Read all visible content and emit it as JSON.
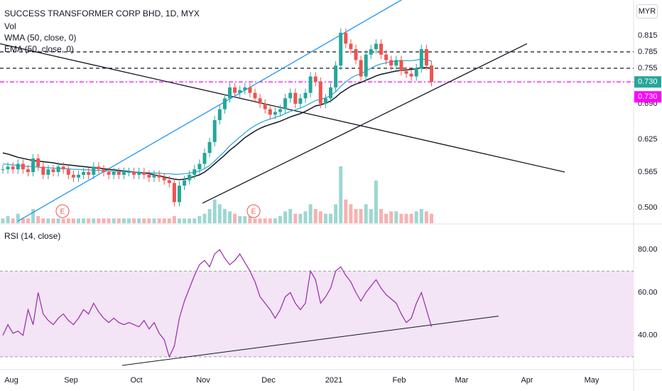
{
  "header": {
    "title": "SUCCESS TRANSFORMER CORP BHD, 1D, MYX",
    "studies": [
      "Vol",
      "WMA (50, close, 0)",
      "EMA (50, close, 0)"
    ],
    "currency": "MYR"
  },
  "rsi_panel": {
    "label": "RSI (14, close)"
  },
  "colors": {
    "up": "#26a69a",
    "down": "#ef5350",
    "wma": "#131722",
    "ema": "#26a4d8",
    "channel": "#2196f3",
    "rsi": "#9c27b0",
    "rsi_band": "#f3e5f5",
    "price_badge": "#26a69a",
    "alert_badge": "#ff00ff"
  },
  "chart_data": [
    {
      "type": "candlestick",
      "title": "SUCCESS TRANSFORMER CORP BHD, 1D, MYX",
      "x_ticks": [
        "Aug",
        "Sep",
        "Oct",
        "Nov",
        "Dec",
        "2021",
        "Feb",
        "Mar",
        "Apr",
        "May"
      ],
      "y_ticks": [
        0.5,
        0.565,
        0.625,
        0.69,
        0.755,
        0.815
      ],
      "ylim": [
        0.47,
        0.88
      ],
      "horizontal_levels": [
        0.785,
        0.755,
        0.73
      ],
      "price_labels": [
        "0.785",
        "0.755",
        "0.730",
        "0.730"
      ],
      "series": [
        {
          "name": "Price",
          "close": [
            0.57,
            0.575,
            0.57,
            0.58,
            0.57,
            0.565,
            0.59,
            0.575,
            0.56,
            0.57,
            0.565,
            0.575,
            0.57,
            0.56,
            0.555,
            0.56,
            0.565,
            0.56,
            0.575,
            0.57,
            0.565,
            0.56,
            0.565,
            0.56,
            0.565,
            0.565,
            0.56,
            0.565,
            0.56,
            0.555,
            0.56,
            0.555,
            0.55,
            0.545,
            0.51,
            0.54,
            0.55,
            0.56,
            0.57,
            0.58,
            0.6,
            0.62,
            0.66,
            0.68,
            0.7,
            0.72,
            0.71,
            0.715,
            0.72,
            0.71,
            0.7,
            0.69,
            0.68,
            0.67,
            0.675,
            0.68,
            0.7,
            0.71,
            0.69,
            0.7,
            0.71,
            0.74,
            0.73,
            0.69,
            0.7,
            0.72,
            0.76,
            0.82,
            0.8,
            0.79,
            0.77,
            0.74,
            0.78,
            0.79,
            0.8,
            0.78,
            0.77,
            0.76,
            0.77,
            0.75,
            0.745,
            0.74,
            0.755,
            0.79,
            0.76,
            0.73
          ]
        },
        {
          "name": "WMA (50, close, 0)",
          "values": [
            0.6,
            0.598,
            0.595,
            0.592,
            0.59,
            0.588,
            0.586,
            0.585,
            0.584,
            0.583,
            0.582,
            0.58,
            0.579,
            0.578,
            0.577,
            0.576,
            0.575,
            0.574,
            0.573,
            0.572,
            0.571,
            0.57,
            0.569,
            0.568,
            0.567,
            0.566,
            0.565,
            0.564,
            0.563,
            0.562,
            0.56,
            0.558,
            0.556,
            0.554,
            0.552,
            0.551,
            0.552,
            0.554,
            0.557,
            0.56,
            0.565,
            0.572,
            0.58,
            0.588,
            0.596,
            0.605,
            0.612,
            0.62,
            0.628,
            0.634,
            0.64,
            0.645,
            0.649,
            0.652,
            0.655,
            0.658,
            0.662,
            0.666,
            0.669,
            0.672,
            0.676,
            0.681,
            0.686,
            0.688,
            0.691,
            0.695,
            0.702,
            0.71,
            0.716,
            0.722,
            0.726,
            0.729,
            0.733,
            0.737,
            0.741,
            0.744,
            0.746,
            0.748,
            0.75,
            0.751,
            0.752,
            0.753,
            0.754,
            0.756,
            0.756,
            0.755
          ]
        },
        {
          "name": "EMA (50, close, 0)",
          "values": [
            0.58,
            0.579,
            0.578,
            0.577,
            0.576,
            0.575,
            0.575,
            0.574,
            0.573,
            0.573,
            0.572,
            0.572,
            0.571,
            0.571,
            0.57,
            0.57,
            0.569,
            0.569,
            0.568,
            0.568,
            0.567,
            0.567,
            0.566,
            0.566,
            0.566,
            0.565,
            0.565,
            0.565,
            0.564,
            0.564,
            0.563,
            0.563,
            0.562,
            0.562,
            0.561,
            0.561,
            0.562,
            0.563,
            0.565,
            0.567,
            0.571,
            0.577,
            0.585,
            0.594,
            0.603,
            0.613,
            0.621,
            0.629,
            0.637,
            0.644,
            0.65,
            0.655,
            0.659,
            0.662,
            0.665,
            0.668,
            0.672,
            0.676,
            0.679,
            0.682,
            0.686,
            0.691,
            0.696,
            0.698,
            0.701,
            0.705,
            0.712,
            0.722,
            0.73,
            0.737,
            0.742,
            0.745,
            0.75,
            0.755,
            0.76,
            0.763,
            0.765,
            0.767,
            0.768,
            0.769,
            0.769,
            0.769,
            0.77,
            0.772,
            0.771,
            0.768
          ]
        },
        {
          "name": "Vol",
          "values": [
            1,
            1.5,
            1,
            2,
            1,
            1,
            3,
            1.5,
            1,
            1,
            1,
            1,
            1,
            1,
            1,
            1,
            1,
            1,
            1,
            1,
            1,
            1,
            1,
            1,
            1,
            1,
            1,
            1,
            1,
            1,
            1,
            1,
            1,
            1,
            1.5,
            1,
            1,
            1,
            1,
            1.5,
            2,
            3,
            5,
            4,
            3,
            2.5,
            2,
            1.5,
            1.5,
            1.5,
            1,
            1,
            1,
            1,
            1,
            1.5,
            2.5,
            3,
            2,
            2,
            2.5,
            4,
            3,
            2.5,
            2,
            2,
            4,
            12,
            5,
            4,
            3,
            3,
            4,
            3,
            9,
            3,
            2,
            2.5,
            2.5,
            2,
            2,
            2,
            2.5,
            3,
            2.5,
            2
          ]
        }
      ]
    },
    {
      "type": "line",
      "title": "RSI (14, close)",
      "y_ticks": [
        80.0,
        60.0,
        40.0
      ],
      "ylim": [
        24,
        92
      ],
      "bands": [
        70,
        30
      ],
      "series": [
        {
          "name": "RSI",
          "values": [
            40,
            45,
            41,
            42,
            40,
            52,
            45,
            60,
            50,
            47,
            45,
            48,
            50,
            47,
            45,
            48,
            52,
            50,
            55,
            51,
            48,
            46,
            48,
            46,
            45,
            46,
            45,
            44,
            47,
            43,
            46,
            41,
            38,
            30,
            35,
            48,
            56,
            62,
            68,
            73,
            75,
            72,
            78,
            80,
            76,
            73,
            75,
            78,
            74,
            70,
            65,
            58,
            55,
            52,
            48,
            52,
            58,
            60,
            55,
            52,
            55,
            70,
            66,
            55,
            58,
            62,
            70,
            72,
            68,
            65,
            60,
            56,
            60,
            63,
            66,
            62,
            59,
            57,
            55,
            50,
            46,
            48,
            55,
            60,
            52,
            44
          ]
        }
      ]
    }
  ]
}
